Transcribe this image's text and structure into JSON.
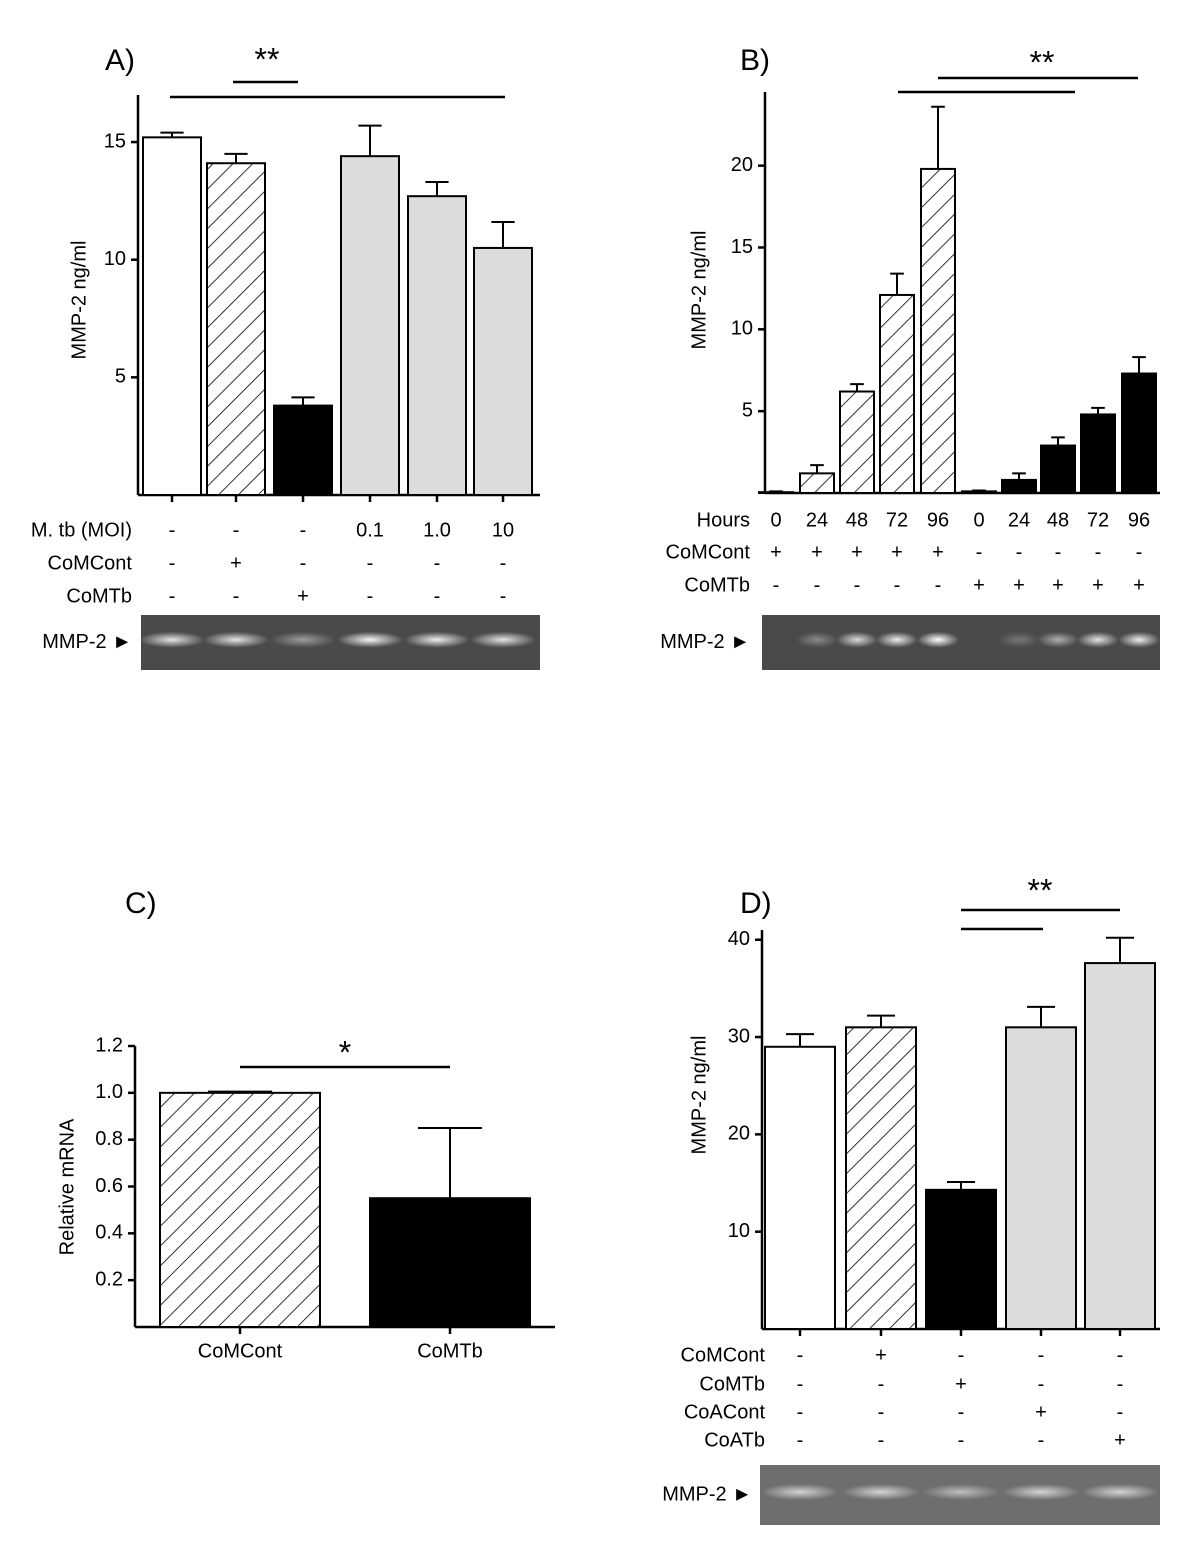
{
  "chart_data": [
    {
      "type": "bar",
      "panel": "A)",
      "y_label": "MMP-2 ng/ml",
      "values": [
        15.2,
        14.1,
        3.8,
        14.4,
        12.7,
        10.5
      ],
      "errors": [
        0.2,
        0.4,
        0.35,
        1.3,
        0.6,
        1.1
      ],
      "colors": [
        "#ffffff",
        "#ffffff",
        "#000000",
        "#dcdcdc",
        "#dcdcdc",
        "#dcdcdc"
      ],
      "hatched": [
        false,
        true,
        false,
        false,
        false,
        false
      ],
      "ylim": [
        0,
        17
      ],
      "yticks": [
        5,
        10,
        15
      ],
      "conditions": [
        {
          "label": "M. tb (MOI)",
          "values": [
            "-",
            "-",
            "-",
            "0.1",
            "1.0",
            "10"
          ]
        },
        {
          "label": "CoMCont",
          "values": [
            "-",
            "+",
            "-",
            "-",
            "-",
            "-"
          ]
        },
        {
          "label": "CoMTb",
          "values": [
            "-",
            "-",
            "+",
            "-",
            "-",
            "-"
          ]
        }
      ],
      "annotations": [
        "**"
      ],
      "gel_label": "MMP-2 ►"
    },
    {
      "type": "bar",
      "panel": "B)",
      "y_label": "MMP-2 ng/ml",
      "x_label": "Hours",
      "categories": [
        "0",
        "24",
        "48",
        "72",
        "96",
        "0",
        "24",
        "48",
        "72",
        "96"
      ],
      "values": [
        0.05,
        1.2,
        6.2,
        12.1,
        19.8,
        0.1,
        0.8,
        2.9,
        4.8,
        7.3
      ],
      "errors": [
        0.05,
        0.5,
        0.45,
        1.3,
        3.8,
        0.05,
        0.4,
        0.5,
        0.4,
        1.0
      ],
      "colors": [
        "#ffffff",
        "#ffffff",
        "#ffffff",
        "#ffffff",
        "#ffffff",
        "#000000",
        "#000000",
        "#000000",
        "#000000",
        "#000000"
      ],
      "hatched": [
        true,
        true,
        true,
        true,
        true,
        false,
        false,
        false,
        false,
        false
      ],
      "ylim": [
        0,
        24.5
      ],
      "yticks": [
        5,
        10,
        15,
        20
      ],
      "conditions": [
        {
          "label": "CoMCont",
          "values": [
            "+",
            "+",
            "+",
            "+",
            "+",
            "-",
            "-",
            "-",
            "-",
            "-"
          ]
        },
        {
          "label": "CoMTb",
          "values": [
            "-",
            "-",
            "-",
            "-",
            "-",
            "+",
            "+",
            "+",
            "+",
            "+"
          ]
        }
      ],
      "annotations": [
        "**"
      ],
      "gel_label": "MMP-2 ►"
    },
    {
      "type": "bar",
      "panel": "C)",
      "y_label": "Relative mRNA",
      "categories": [
        "CoMCont",
        "CoMTb"
      ],
      "values": [
        1.0,
        0.55
      ],
      "errors": [
        0.005,
        0.3
      ],
      "colors": [
        "#ffffff",
        "#000000"
      ],
      "hatched": [
        true,
        false
      ],
      "ylim": [
        0,
        1.2
      ],
      "yticks": [
        0.2,
        0.4,
        0.6,
        0.8,
        {
          "value": 1,
          "label": "1.0"
        },
        1.2
      ],
      "annotations": [
        "*"
      ]
    },
    {
      "type": "bar",
      "panel": "D)",
      "y_label": "MMP-2 ng/ml",
      "values": [
        29.0,
        31.0,
        14.3,
        31.0,
        37.6
      ],
      "errors": [
        1.3,
        1.2,
        0.8,
        2.1,
        2.6
      ],
      "colors": [
        "#ffffff",
        "#ffffff",
        "#000000",
        "#dcdcdc",
        "#dcdcdc"
      ],
      "hatched": [
        false,
        true,
        false,
        false,
        false
      ],
      "ylim": [
        0,
        41
      ],
      "yticks": [
        10,
        20,
        30,
        40
      ],
      "conditions": [
        {
          "label": "CoMCont",
          "values": [
            "-",
            "+",
            "-",
            "-",
            "-"
          ]
        },
        {
          "label": "CoMTb",
          "values": [
            "-",
            "-",
            "+",
            "-",
            "-"
          ]
        },
        {
          "label": "CoACont",
          "values": [
            "-",
            "-",
            "-",
            "+",
            "-"
          ]
        },
        {
          "label": "CoATb",
          "values": [
            "-",
            "-",
            "-",
            "-",
            "+"
          ]
        }
      ],
      "annotations": [
        "**"
      ],
      "gel_label": "MMP-2 ►"
    }
  ]
}
